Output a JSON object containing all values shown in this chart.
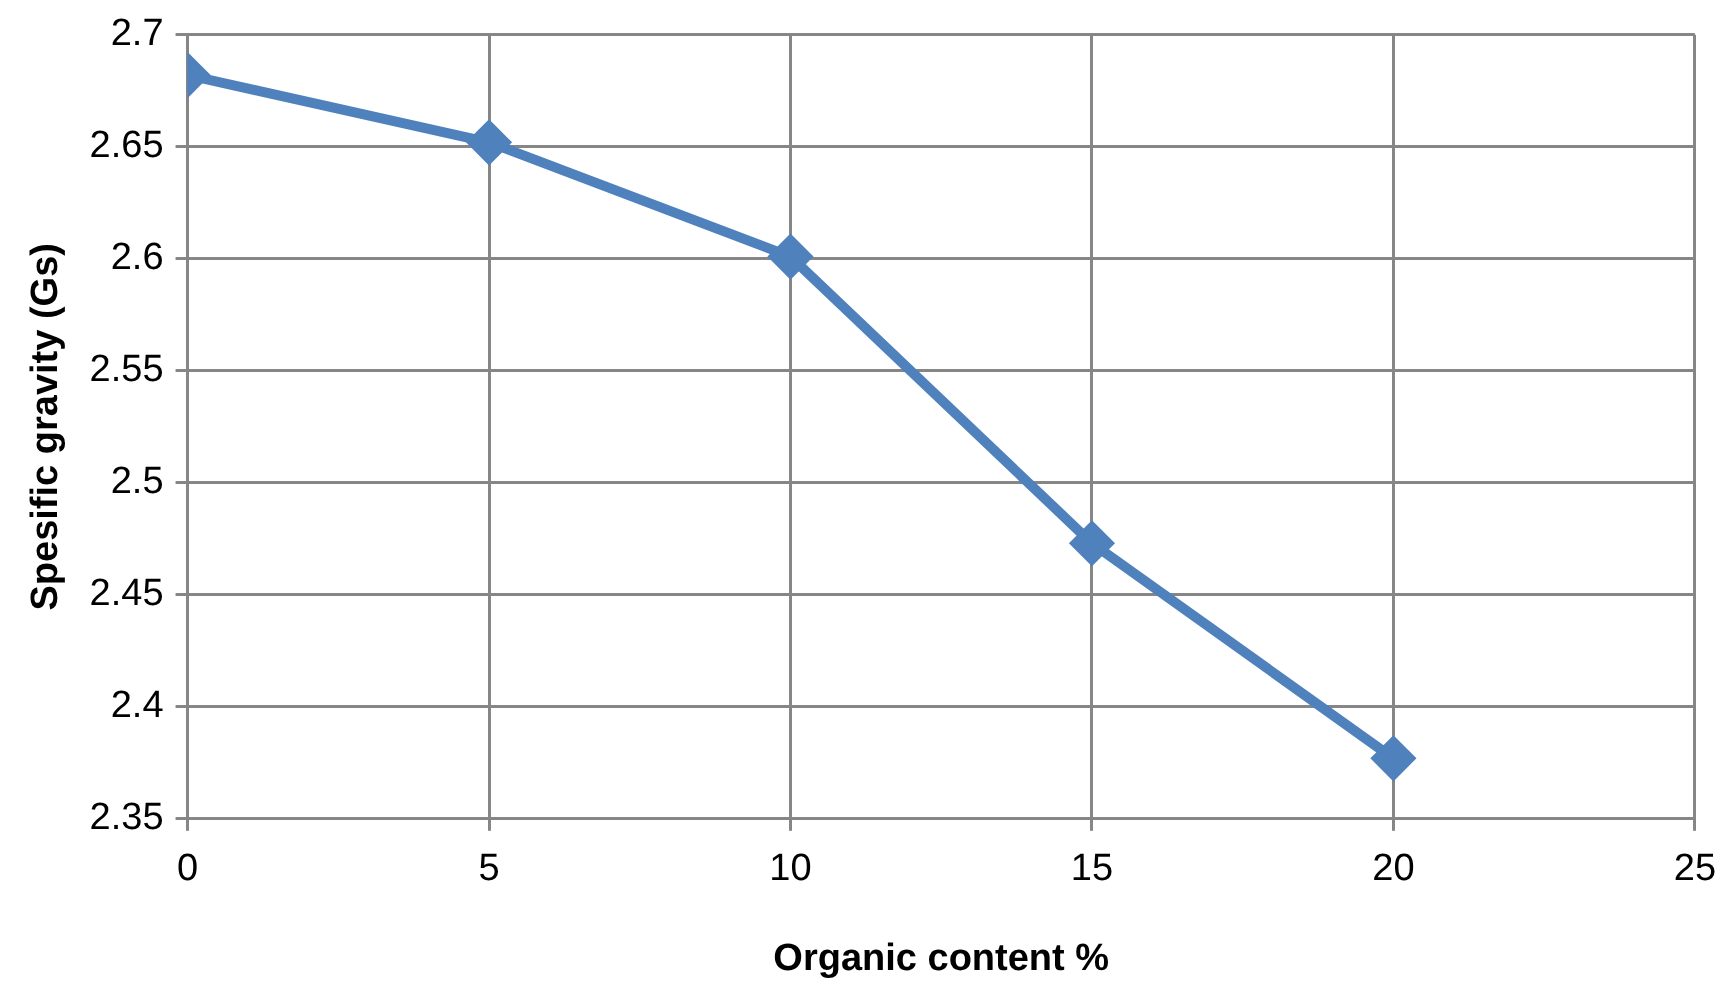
{
  "chart_data": {
    "type": "line",
    "xlabel": "Organic content %",
    "ylabel": "Spesific gravity (Gs)",
    "x": [
      0,
      5,
      10,
      15,
      20
    ],
    "series": [
      {
        "color": "#4f81bd",
        "values": [
          2.682,
          2.652,
          2.601,
          2.473,
          2.377
        ]
      }
    ],
    "xlim": [
      0,
      25
    ],
    "xticks": [
      0,
      5,
      10,
      15,
      20,
      25
    ],
    "ylim": [
      2.35,
      2.7
    ],
    "yticks": [
      2.35,
      2.4,
      2.45,
      2.5,
      2.55,
      2.6,
      2.65,
      2.7
    ],
    "grid": true,
    "legend": false,
    "marker": "diamond",
    "line_style": "solid"
  }
}
